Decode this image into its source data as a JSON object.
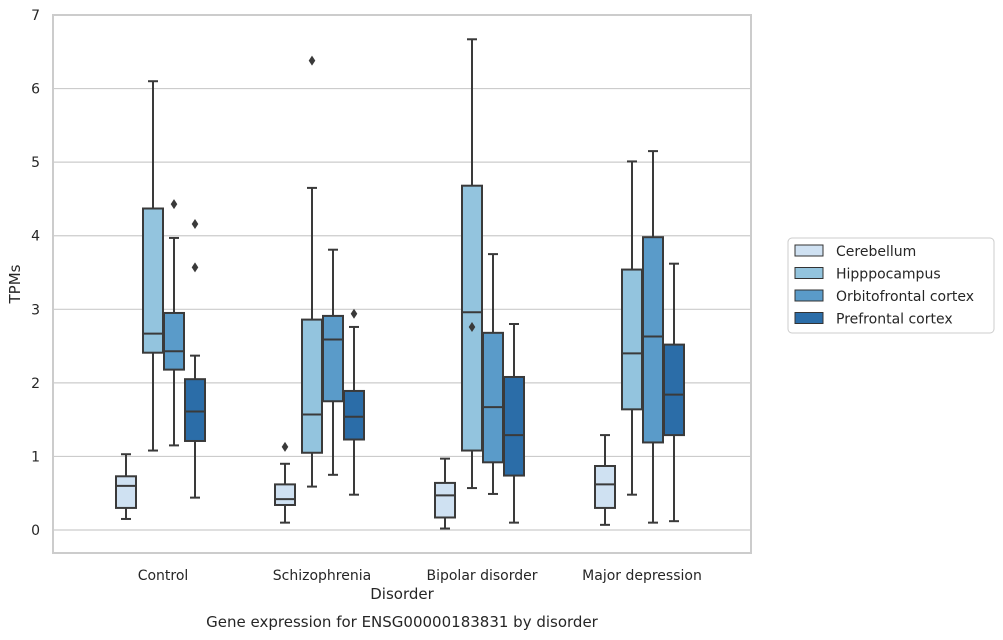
{
  "chart_data": {
    "type": "boxplot",
    "title": "",
    "caption": "Gene expression for ENSG00000183831 by disorder",
    "xlabel": "Disorder",
    "ylabel": "TPMs",
    "ylim": [
      -0.3,
      7
    ],
    "yticks": [
      0,
      1,
      2,
      3,
      4,
      5,
      6,
      7
    ],
    "grid": "horizontal",
    "legend_position": "right",
    "categories": [
      "Control",
      "Schizophrenia",
      "Bipolar disorder",
      "Major depression"
    ],
    "series": [
      {
        "name": "Cerebellum",
        "color": "#cfe1f2",
        "boxes": [
          {
            "whislo": 0.15,
            "q1": 0.3,
            "med": 0.6,
            "q3": 0.73,
            "whishi": 1.03,
            "fliers": []
          },
          {
            "whislo": 0.1,
            "q1": 0.34,
            "med": 0.42,
            "q3": 0.62,
            "whishi": 0.9,
            "fliers": [
              1.13
            ]
          },
          {
            "whislo": 0.02,
            "q1": 0.17,
            "med": 0.47,
            "q3": 0.64,
            "whishi": 0.97,
            "fliers": []
          },
          {
            "whislo": 0.07,
            "q1": 0.3,
            "med": 0.62,
            "q3": 0.87,
            "whishi": 1.29,
            "fliers": []
          }
        ]
      },
      {
        "name": "Hipppocampus",
        "color": "#93c4de",
        "boxes": [
          {
            "whislo": 1.08,
            "q1": 2.41,
            "med": 2.67,
            "q3": 4.37,
            "whishi": 6.1,
            "fliers": []
          },
          {
            "whislo": 0.59,
            "q1": 1.05,
            "med": 1.57,
            "q3": 2.86,
            "whishi": 4.65,
            "fliers": [
              6.38
            ]
          },
          {
            "whislo": 0.57,
            "q1": 1.08,
            "med": 2.96,
            "q3": 4.68,
            "whishi": 6.67,
            "fliers": [
              2.76
            ]
          },
          {
            "whislo": 0.48,
            "q1": 1.64,
            "med": 2.4,
            "q3": 3.54,
            "whishi": 5.01,
            "fliers": []
          }
        ]
      },
      {
        "name": "Orbitofrontal cortex",
        "color": "#5a9bc9",
        "boxes": [
          {
            "whislo": 1.15,
            "q1": 2.18,
            "med": 2.43,
            "q3": 2.95,
            "whishi": 3.97,
            "fliers": [
              4.43
            ]
          },
          {
            "whislo": 0.75,
            "q1": 1.75,
            "med": 2.59,
            "q3": 2.91,
            "whishi": 3.81,
            "fliers": []
          },
          {
            "whislo": 0.49,
            "q1": 0.92,
            "med": 1.67,
            "q3": 2.68,
            "whishi": 3.75,
            "fliers": []
          },
          {
            "whislo": 0.1,
            "q1": 1.19,
            "med": 2.63,
            "q3": 3.98,
            "whishi": 5.15,
            "fliers": []
          }
        ]
      },
      {
        "name": "Prefrontal cortex",
        "color": "#2b6da8",
        "boxes": [
          {
            "whislo": 0.44,
            "q1": 1.21,
            "med": 1.61,
            "q3": 2.05,
            "whishi": 2.37,
            "fliers": [
              4.16,
              3.57
            ]
          },
          {
            "whislo": 0.48,
            "q1": 1.23,
            "med": 1.54,
            "q3": 1.89,
            "whishi": 2.76,
            "fliers": [
              2.94
            ]
          },
          {
            "whislo": 0.1,
            "q1": 0.74,
            "med": 1.29,
            "q3": 2.08,
            "whishi": 2.8,
            "fliers": []
          },
          {
            "whislo": 0.12,
            "q1": 1.29,
            "med": 1.84,
            "q3": 2.52,
            "whishi": 3.62,
            "fliers": []
          }
        ]
      }
    ]
  }
}
